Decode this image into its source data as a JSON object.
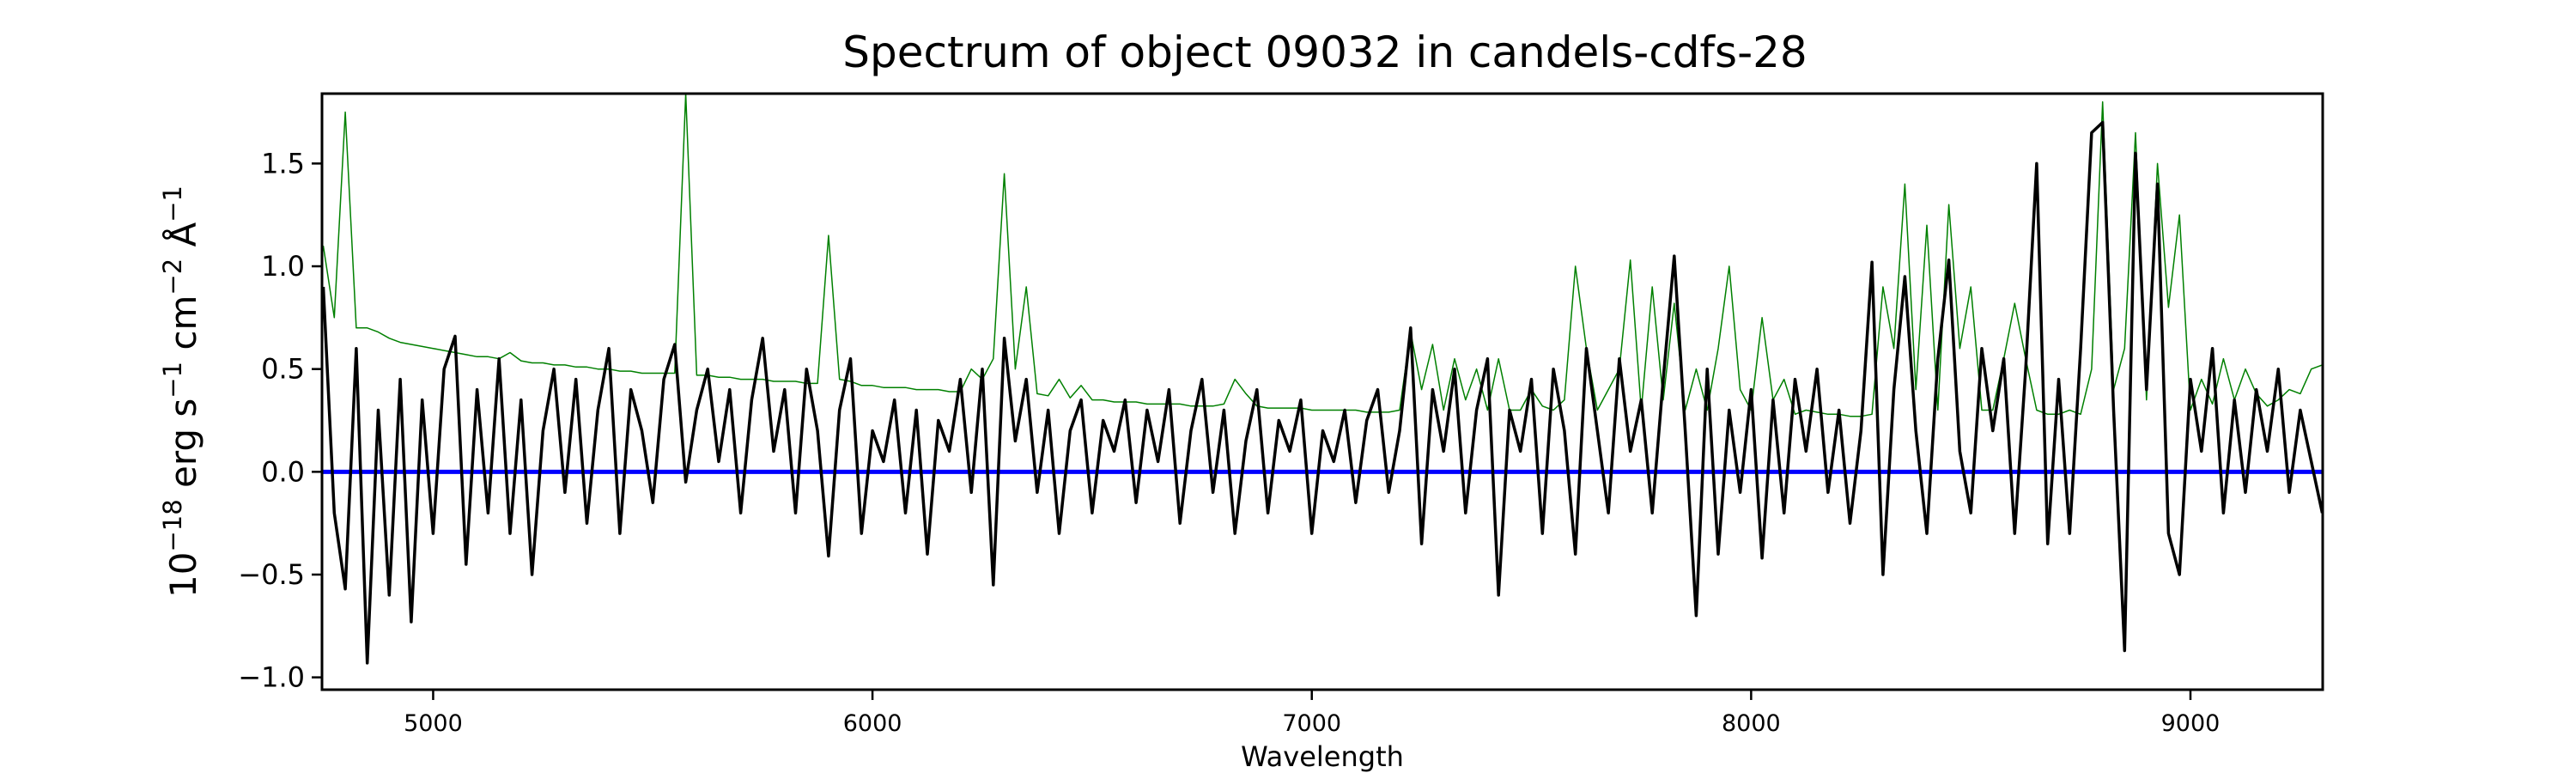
{
  "chart_data": {
    "type": "line",
    "title": "Spectrum of object 09032 in candels-cdfs-28",
    "xlabel": "Wavelength",
    "ylabel": {
      "base": "10",
      "exp1": "−18",
      "t1": " erg s",
      "exp2": "−1",
      "t2": " cm",
      "exp3": "−2",
      "t3": " Å",
      "exp4": "−1"
    },
    "xlim": [
      4747,
      9301
    ],
    "ylim": [
      -1.06,
      1.84
    ],
    "xticks": [
      5000,
      6000,
      7000,
      8000,
      9000
    ],
    "xtick_labels": [
      "5000",
      "6000",
      "7000",
      "8000",
      "9000"
    ],
    "yticks": [
      -1.0,
      -0.5,
      0.0,
      0.5,
      1.0,
      1.5
    ],
    "ytick_labels": [
      "−1.0",
      "−0.5",
      "0.0",
      "0.5",
      "1.0",
      "1.5"
    ],
    "grid": false,
    "x_start": 4750,
    "x_step": 25,
    "series": [
      {
        "role": "error",
        "color": "#008000",
        "values": [
          1.1,
          0.75,
          1.75,
          0.7,
          0.7,
          0.68,
          0.65,
          0.63,
          0.62,
          0.61,
          0.6,
          0.59,
          0.58,
          0.57,
          0.56,
          0.56,
          0.55,
          0.58,
          0.54,
          0.53,
          0.53,
          0.52,
          0.52,
          0.51,
          0.51,
          0.5,
          0.5,
          0.49,
          0.49,
          0.48,
          0.48,
          0.48,
          0.48,
          1.84,
          0.47,
          0.47,
          0.46,
          0.46,
          0.45,
          0.45,
          0.45,
          0.44,
          0.44,
          0.44,
          0.43,
          0.43,
          1.15,
          0.45,
          0.44,
          0.42,
          0.42,
          0.41,
          0.41,
          0.41,
          0.4,
          0.4,
          0.4,
          0.39,
          0.39,
          0.5,
          0.45,
          0.55,
          1.45,
          0.5,
          0.9,
          0.38,
          0.37,
          0.45,
          0.36,
          0.42,
          0.35,
          0.35,
          0.34,
          0.34,
          0.34,
          0.33,
          0.33,
          0.33,
          0.33,
          0.32,
          0.32,
          0.32,
          0.33,
          0.45,
          0.38,
          0.32,
          0.31,
          0.31,
          0.31,
          0.31,
          0.3,
          0.3,
          0.3,
          0.3,
          0.3,
          0.29,
          0.29,
          0.29,
          0.3,
          0.68,
          0.4,
          0.62,
          0.3,
          0.55,
          0.35,
          0.5,
          0.3,
          0.55,
          0.3,
          0.3,
          0.4,
          0.32,
          0.3,
          0.35,
          1.0,
          0.6,
          0.3,
          0.4,
          0.5,
          1.03,
          0.3,
          0.9,
          0.35,
          0.82,
          0.3,
          0.5,
          0.3,
          0.6,
          1.0,
          0.4,
          0.3,
          0.75,
          0.35,
          0.45,
          0.28,
          0.3,
          0.29,
          0.28,
          0.28,
          0.27,
          0.27,
          0.28,
          0.9,
          0.6,
          1.4,
          0.4,
          1.2,
          0.3,
          1.3,
          0.6,
          0.9,
          0.3,
          0.3,
          0.55,
          0.82,
          0.55,
          0.3,
          0.28,
          0.28,
          0.3,
          0.28,
          0.5,
          1.8,
          0.4,
          0.6,
          1.65,
          0.35,
          1.5,
          0.8,
          1.25,
          0.3,
          0.45,
          0.33,
          0.55,
          0.35,
          0.5,
          0.38,
          0.32,
          0.35,
          0.4,
          0.38,
          0.5,
          0.52
        ]
      },
      {
        "role": "model",
        "color": "#0000ff",
        "constant": 0.0
      },
      {
        "role": "flux",
        "color": "#000000",
        "values": [
          0.9,
          -0.2,
          -0.57,
          0.6,
          -0.93,
          0.3,
          -0.6,
          0.45,
          -0.73,
          0.35,
          -0.3,
          0.5,
          0.66,
          -0.45,
          0.4,
          -0.2,
          0.55,
          -0.3,
          0.35,
          -0.5,
          0.2,
          0.5,
          -0.1,
          0.45,
          -0.25,
          0.3,
          0.6,
          -0.3,
          0.4,
          0.2,
          -0.15,
          0.45,
          0.62,
          -0.05,
          0.3,
          0.5,
          0.05,
          0.4,
          -0.2,
          0.35,
          0.65,
          0.1,
          0.4,
          -0.2,
          0.5,
          0.2,
          -0.41,
          0.3,
          0.55,
          -0.3,
          0.2,
          0.05,
          0.35,
          -0.2,
          0.3,
          -0.4,
          0.25,
          0.1,
          0.45,
          -0.1,
          0.5,
          -0.55,
          0.65,
          0.15,
          0.45,
          -0.1,
          0.3,
          -0.3,
          0.2,
          0.35,
          -0.2,
          0.25,
          0.1,
          0.35,
          -0.15,
          0.3,
          0.05,
          0.4,
          -0.25,
          0.2,
          0.45,
          -0.1,
          0.3,
          -0.3,
          0.15,
          0.4,
          -0.2,
          0.25,
          0.1,
          0.35,
          -0.3,
          0.2,
          0.05,
          0.3,
          -0.15,
          0.25,
          0.4,
          -0.1,
          0.2,
          0.7,
          -0.35,
          0.4,
          0.1,
          0.5,
          -0.2,
          0.3,
          0.55,
          -0.6,
          0.3,
          0.1,
          0.45,
          -0.3,
          0.5,
          0.2,
          -0.4,
          0.6,
          0.2,
          -0.2,
          0.55,
          0.1,
          0.35,
          -0.2,
          0.45,
          1.05,
          0.2,
          -0.7,
          0.5,
          -0.4,
          0.3,
          -0.1,
          0.4,
          -0.42,
          0.35,
          -0.2,
          0.45,
          0.1,
          0.5,
          -0.1,
          0.3,
          -0.25,
          0.2,
          1.02,
          -0.5,
          0.4,
          0.95,
          0.2,
          -0.3,
          0.55,
          1.03,
          0.1,
          -0.2,
          0.6,
          0.2,
          0.55,
          -0.3,
          0.5,
          1.5,
          -0.35,
          0.45,
          -0.3,
          0.6,
          1.65,
          1.7,
          0.3,
          -0.87,
          1.55,
          0.4,
          1.4,
          -0.3,
          -0.5,
          0.45,
          0.1,
          0.6,
          -0.2,
          0.35,
          -0.1,
          0.4,
          0.1,
          0.5,
          -0.1,
          0.3,
          0.05,
          -0.2
        ]
      }
    ]
  }
}
